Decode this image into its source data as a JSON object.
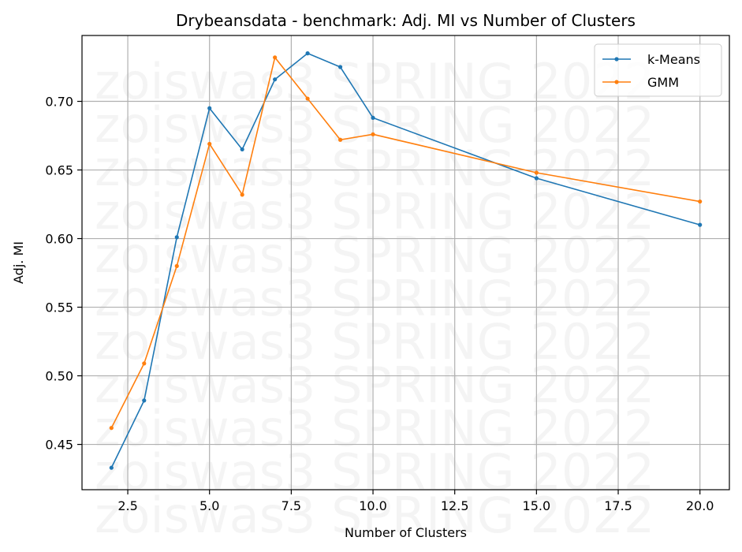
{
  "chart_data": {
    "type": "line",
    "title": "Drybeansdata - benchmark: Adj. MI vs Number of Clusters",
    "xlabel": "Number of Clusters",
    "ylabel": "Adj. MI",
    "xlim": [
      1.1,
      20.9
    ],
    "ylim": [
      0.417,
      0.748
    ],
    "xticks": [
      2.5,
      5.0,
      7.5,
      10.0,
      12.5,
      15.0,
      17.5,
      20.0
    ],
    "xtick_labels": [
      "2.5",
      "5.0",
      "7.5",
      "10.0",
      "12.5",
      "15.0",
      "17.5",
      "20.0"
    ],
    "yticks": [
      0.45,
      0.5,
      0.55,
      0.6,
      0.65,
      0.7
    ],
    "ytick_labels": [
      "0.45",
      "0.50",
      "0.55",
      "0.60",
      "0.65",
      "0.70"
    ],
    "grid": true,
    "legend_position": "top-right",
    "series": [
      {
        "name": "k-Means",
        "color": "#1f77b4",
        "x": [
          2,
          3,
          4,
          5,
          6,
          7,
          8,
          9,
          10,
          15,
          20
        ],
        "y": [
          0.433,
          0.482,
          0.601,
          0.695,
          0.665,
          0.716,
          0.735,
          0.725,
          0.688,
          0.644,
          0.61
        ]
      },
      {
        "name": "GMM",
        "color": "#ff7f0e",
        "x": [
          2,
          3,
          4,
          5,
          6,
          7,
          8,
          9,
          10,
          15,
          20
        ],
        "y": [
          0.462,
          0.509,
          0.58,
          0.669,
          0.632,
          0.732,
          0.702,
          0.672,
          0.676,
          0.648,
          0.627
        ]
      }
    ]
  },
  "watermark": {
    "text": "zoiswas3 SPRING 2022"
  }
}
